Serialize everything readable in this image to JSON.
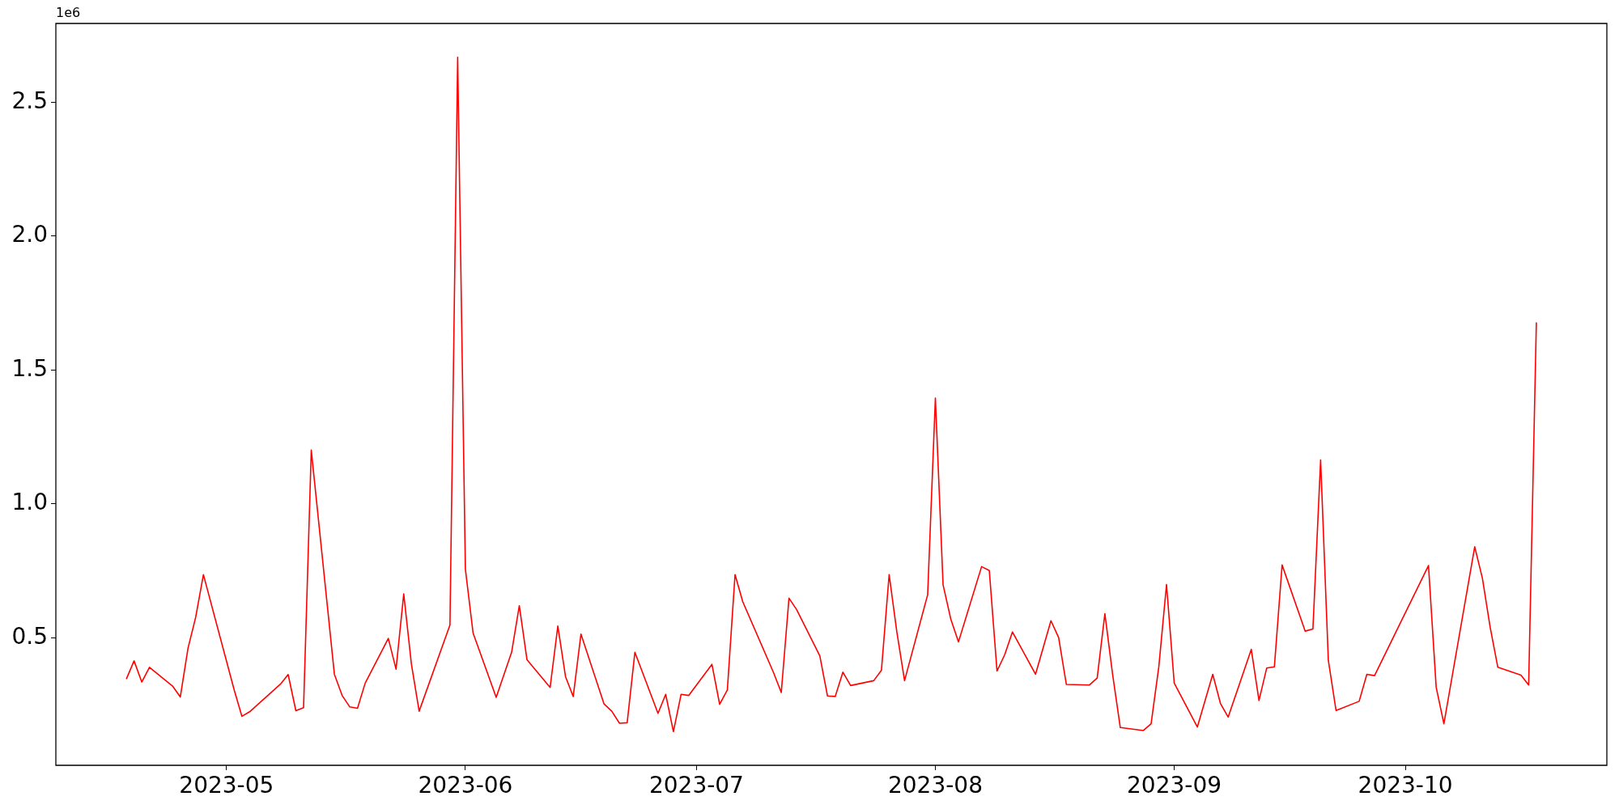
{
  "chart_data": {
    "type": "line",
    "annotations": [
      "1e6"
    ],
    "xlim": [
      "2023-04-08T20:24",
      "2023-10-27T03:36"
    ],
    "xticks": [
      {
        "value": "2023-05-01",
        "label": "2023-05"
      },
      {
        "value": "2023-06-01",
        "label": "2023-06"
      },
      {
        "value": "2023-07-01",
        "label": "2023-07"
      },
      {
        "value": "2023-08-01",
        "label": "2023-08"
      },
      {
        "value": "2023-09-01",
        "label": "2023-09"
      },
      {
        "value": "2023-10-01",
        "label": "2023-10"
      }
    ],
    "ylim": [
      0.024,
      2.794
    ],
    "yticks": [
      0.5,
      {
        "value": 1,
        "label": "1.0"
      },
      1.5,
      {
        "value": 2,
        "label": "2.0"
      },
      2.5
    ],
    "x": [
      "2023-04-18",
      "2023-04-19",
      "2023-04-20",
      "2023-04-21",
      "2023-04-24",
      "2023-04-25",
      "2023-04-26",
      "2023-04-27",
      "2023-04-28",
      "2023-05-02",
      "2023-05-03",
      "2023-05-04",
      "2023-05-08",
      "2023-05-09",
      "2023-05-10",
      "2023-05-11",
      "2023-05-12",
      "2023-05-15",
      "2023-05-16",
      "2023-05-17",
      "2023-05-18",
      "2023-05-19",
      "2023-05-22",
      "2023-05-23",
      "2023-05-24",
      "2023-05-25",
      "2023-05-26",
      "2023-05-30",
      "2023-05-31",
      "2023-06-01",
      "2023-06-02",
      "2023-06-05",
      "2023-06-07",
      "2023-06-08",
      "2023-06-09",
      "2023-06-12",
      "2023-06-13",
      "2023-06-14",
      "2023-06-15",
      "2023-06-16",
      "2023-06-19",
      "2023-06-20",
      "2023-06-21",
      "2023-06-22",
      "2023-06-23",
      "2023-06-26",
      "2023-06-27",
      "2023-06-28",
      "2023-06-29",
      "2023-06-30",
      "2023-07-03",
      "2023-07-04",
      "2023-07-05",
      "2023-07-06",
      "2023-07-07",
      "2023-07-11",
      "2023-07-12",
      "2023-07-13",
      "2023-07-14",
      "2023-07-17",
      "2023-07-18",
      "2023-07-19",
      "2023-07-20",
      "2023-07-21",
      "2023-07-24",
      "2023-07-25",
      "2023-07-26",
      "2023-07-27",
      "2023-07-28",
      "2023-07-31",
      "2023-08-01",
      "2023-08-02",
      "2023-08-03",
      "2023-08-04",
      "2023-08-07",
      "2023-08-08",
      "2023-08-09",
      "2023-08-10",
      "2023-08-11",
      "2023-08-14",
      "2023-08-16",
      "2023-08-17",
      "2023-08-18",
      "2023-08-21",
      "2023-08-22",
      "2023-08-23",
      "2023-08-24",
      "2023-08-25",
      "2023-08-28",
      "2023-08-29",
      "2023-08-30",
      "2023-08-31",
      "2023-09-01",
      "2023-09-04",
      "2023-09-06",
      "2023-09-07",
      "2023-09-08",
      "2023-09-11",
      "2023-09-12",
      "2023-09-13",
      "2023-09-14",
      "2023-09-15",
      "2023-09-18",
      "2023-09-19",
      "2023-09-20",
      "2023-09-21",
      "2023-09-22",
      "2023-09-25",
      "2023-09-26",
      "2023-09-27",
      "2023-10-04",
      "2023-10-05",
      "2023-10-06",
      "2023-10-10",
      "2023-10-11",
      "2023-10-12",
      "2023-10-13",
      "2023-10-16",
      "2023-10-17",
      "2023-10-18"
    ],
    "series": [
      {
        "color": "#ff0000",
        "values": [
          0.346,
          0.414,
          0.335,
          0.39,
          0.32,
          0.279,
          0.461,
          0.577,
          0.736,
          0.305,
          0.207,
          0.224,
          0.327,
          0.363,
          0.228,
          0.239,
          1.201,
          0.364,
          0.285,
          0.242,
          0.237,
          0.331,
          0.498,
          0.383,
          0.664,
          0.401,
          0.226,
          0.548,
          2.668,
          0.757,
          0.518,
          0.278,
          0.446,
          0.62,
          0.418,
          0.315,
          0.544,
          0.355,
          0.281,
          0.514,
          0.253,
          0.226,
          0.181,
          0.183,
          0.446,
          0.218,
          0.289,
          0.15,
          0.289,
          0.285,
          0.401,
          0.252,
          0.305,
          0.736,
          0.635,
          0.37,
          0.296,
          0.648,
          0.605,
          0.433,
          0.283,
          0.281,
          0.372,
          0.322,
          0.34,
          0.379,
          0.736,
          0.522,
          0.34,
          0.661,
          1.395,
          0.698,
          0.57,
          0.485,
          0.766,
          0.751,
          0.376,
          0.437,
          0.522,
          0.364,
          0.564,
          0.501,
          0.326,
          0.324,
          0.35,
          0.59,
          0.364,
          0.165,
          0.154,
          0.179,
          0.392,
          0.699,
          0.331,
          0.167,
          0.364,
          0.255,
          0.204,
          0.457,
          0.266,
          0.387,
          0.392,
          0.772,
          0.525,
          0.533,
          1.164,
          0.416,
          0.229,
          0.263,
          0.364,
          0.359,
          0.77,
          0.315,
          0.179,
          0.84,
          0.722,
          0.54,
          0.39,
          0.361,
          0.324,
          1.678
        ]
      }
    ]
  }
}
